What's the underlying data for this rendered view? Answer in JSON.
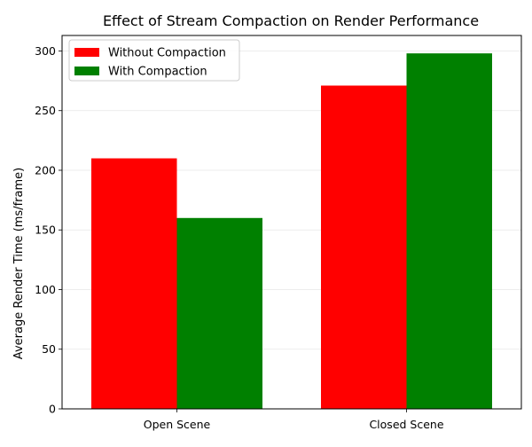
{
  "chart_data": {
    "type": "bar",
    "title": "Effect of Stream Compaction on Render Performance",
    "xlabel": "",
    "ylabel": "Average Render Time (ms/frame)",
    "categories": [
      "Open Scene",
      "Closed Scene"
    ],
    "series": [
      {
        "name": "Without Compaction",
        "values": [
          210,
          271
        ],
        "color": "#ff0000"
      },
      {
        "name": "With Compaction",
        "values": [
          160,
          298
        ],
        "color": "#008000"
      }
    ],
    "ylim": [
      0,
      313
    ],
    "yticks": [
      0,
      50,
      100,
      150,
      200,
      250,
      300
    ],
    "grid": "y",
    "legend_position": "top-left"
  }
}
